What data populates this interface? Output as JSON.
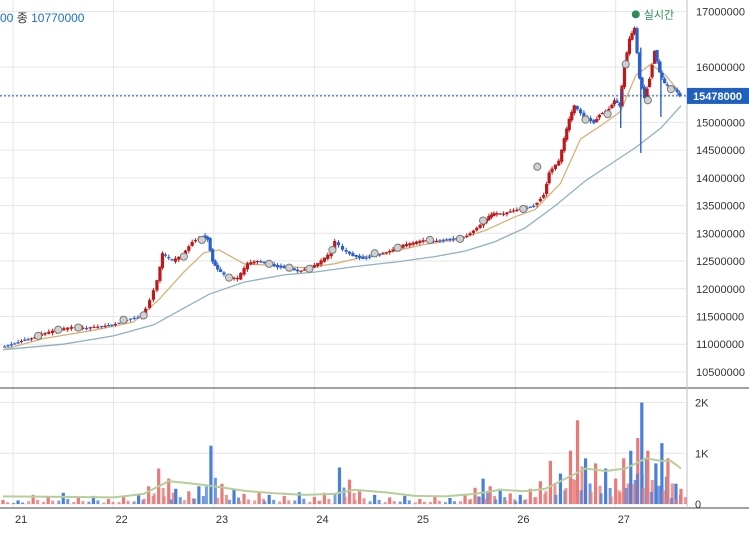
{
  "header": {
    "close_partial": "00",
    "close_label": "종",
    "close_value": "10770000",
    "realtime_label": "실시간"
  },
  "colors": {
    "up_candle": "#c0181a",
    "down_candle": "#2b5fd0",
    "ma_short": "#d4b27a",
    "ma_long": "#8db3bf",
    "vol_up": "#e87a7a",
    "vol_down": "#4a7fd8",
    "vol_ma": "#b6cf9a",
    "grid": "#e6e6e6",
    "axis_text": "#333333",
    "price_tag_bg": "#1f5fbf",
    "realtime_dot": "#2e8b57"
  },
  "chart_data": [
    {
      "type": "candlestick",
      "title": "",
      "x_ticks": [
        "21",
        "22",
        "23",
        "24",
        "25",
        "26",
        "27"
      ],
      "y_ticks": [
        "10500000",
        "11000000",
        "11500000",
        "12000000",
        "12500000",
        "13000000",
        "13500000",
        "14000000",
        "14500000",
        "15000000",
        "15500000",
        "16000000",
        "17000000"
      ],
      "ylim": [
        10300000,
        17100000
      ],
      "current_price": 15478000,
      "current_price_label": "15478000",
      "grid": true,
      "close_series": [
        [
          20.9,
          10950000
        ],
        [
          21.0,
          11000000
        ],
        [
          21.1,
          11070000
        ],
        [
          21.2,
          11110000
        ],
        [
          21.3,
          11180000
        ],
        [
          21.45,
          11250000
        ],
        [
          21.6,
          11300000
        ],
        [
          21.75,
          11290000
        ],
        [
          21.9,
          11330000
        ],
        [
          22.0,
          11350000
        ],
        [
          22.15,
          11450000
        ],
        [
          22.3,
          11500000
        ],
        [
          22.38,
          11800000
        ],
        [
          22.45,
          12150000
        ],
        [
          22.5,
          12630000
        ],
        [
          22.6,
          12500000
        ],
        [
          22.7,
          12600000
        ],
        [
          22.8,
          12850000
        ],
        [
          22.9,
          12950000
        ],
        [
          22.95,
          12900000
        ],
        [
          23.0,
          12500000
        ],
        [
          23.05,
          12350000
        ],
        [
          23.15,
          12200000
        ],
        [
          23.25,
          12180000
        ],
        [
          23.35,
          12450000
        ],
        [
          23.45,
          12500000
        ],
        [
          23.55,
          12450000
        ],
        [
          23.65,
          12400000
        ],
        [
          23.75,
          12380000
        ],
        [
          23.85,
          12320000
        ],
        [
          23.95,
          12360000
        ],
        [
          24.05,
          12450000
        ],
        [
          24.15,
          12600000
        ],
        [
          24.22,
          12850000
        ],
        [
          24.3,
          12700000
        ],
        [
          24.4,
          12600000
        ],
        [
          24.5,
          12550000
        ],
        [
          24.6,
          12600000
        ],
        [
          24.7,
          12640000
        ],
        [
          24.8,
          12700000
        ],
        [
          24.9,
          12780000
        ],
        [
          25.0,
          12820000
        ],
        [
          25.1,
          12870000
        ],
        [
          25.2,
          12860000
        ],
        [
          25.3,
          12880000
        ],
        [
          25.4,
          12900000
        ],
        [
          25.5,
          12920000
        ],
        [
          25.6,
          13050000
        ],
        [
          25.7,
          13200000
        ],
        [
          25.75,
          13300000
        ],
        [
          25.8,
          13350000
        ],
        [
          25.9,
          13350000
        ],
        [
          26.0,
          13420000
        ],
        [
          26.1,
          13450000
        ],
        [
          26.2,
          13500000
        ],
        [
          26.3,
          13700000
        ],
        [
          26.35,
          14100000
        ],
        [
          26.45,
          14300000
        ],
        [
          26.5,
          14700000
        ],
        [
          26.55,
          15050000
        ],
        [
          26.6,
          15300000
        ],
        [
          26.7,
          15100000
        ],
        [
          26.8,
          15000000
        ],
        [
          26.85,
          15150000
        ],
        [
          26.95,
          15250000
        ],
        [
          27.0,
          15400000
        ],
        [
          27.05,
          15300000
        ],
        [
          27.1,
          16000000
        ],
        [
          27.15,
          16500000
        ],
        [
          27.2,
          16700000
        ],
        [
          27.25,
          15800000
        ],
        [
          27.3,
          15450000
        ],
        [
          27.35,
          15800000
        ],
        [
          27.4,
          16300000
        ],
        [
          27.45,
          15900000
        ],
        [
          27.5,
          15700000
        ],
        [
          27.55,
          15650000
        ],
        [
          27.6,
          15600000
        ],
        [
          27.65,
          15478000
        ]
      ],
      "ma_short": [
        [
          20.9,
          10900000
        ],
        [
          21.3,
          11100000
        ],
        [
          21.8,
          11250000
        ],
        [
          22.2,
          11400000
        ],
        [
          22.45,
          11800000
        ],
        [
          22.7,
          12300000
        ],
        [
          22.9,
          12650000
        ],
        [
          23.05,
          12700000
        ],
        [
          23.3,
          12450000
        ],
        [
          23.6,
          12420000
        ],
        [
          23.9,
          12380000
        ],
        [
          24.2,
          12450000
        ],
        [
          24.5,
          12580000
        ],
        [
          24.8,
          12680000
        ],
        [
          25.1,
          12800000
        ],
        [
          25.4,
          12880000
        ],
        [
          25.7,
          13050000
        ],
        [
          26.0,
          13300000
        ],
        [
          26.2,
          13430000
        ],
        [
          26.45,
          13900000
        ],
        [
          26.65,
          14700000
        ],
        [
          26.9,
          15000000
        ],
        [
          27.05,
          15200000
        ],
        [
          27.2,
          15850000
        ],
        [
          27.35,
          16050000
        ],
        [
          27.5,
          15850000
        ],
        [
          27.65,
          15500000
        ]
      ],
      "ma_long": [
        [
          20.9,
          10900000
        ],
        [
          21.5,
          11000000
        ],
        [
          22.0,
          11150000
        ],
        [
          22.4,
          11350000
        ],
        [
          22.7,
          11650000
        ],
        [
          22.95,
          11900000
        ],
        [
          23.3,
          12120000
        ],
        [
          23.7,
          12250000
        ],
        [
          24.0,
          12300000
        ],
        [
          24.4,
          12400000
        ],
        [
          24.8,
          12480000
        ],
        [
          25.2,
          12580000
        ],
        [
          25.5,
          12680000
        ],
        [
          25.8,
          12850000
        ],
        [
          26.1,
          13100000
        ],
        [
          26.4,
          13500000
        ],
        [
          26.7,
          13950000
        ],
        [
          26.95,
          14250000
        ],
        [
          27.2,
          14550000
        ],
        [
          27.45,
          14900000
        ],
        [
          27.65,
          15300000
        ]
      ],
      "markers": [
        [
          21.25,
          11150000
        ],
        [
          21.45,
          11260000
        ],
        [
          21.65,
          11300000
        ],
        [
          22.1,
          11440000
        ],
        [
          22.3,
          11520000
        ],
        [
          22.7,
          12580000
        ],
        [
          22.88,
          12880000
        ],
        [
          23.15,
          12200000
        ],
        [
          23.55,
          12450000
        ],
        [
          23.75,
          12380000
        ],
        [
          23.95,
          12360000
        ],
        [
          24.18,
          12700000
        ],
        [
          24.6,
          12640000
        ],
        [
          24.83,
          12740000
        ],
        [
          25.15,
          12880000
        ],
        [
          25.45,
          12900000
        ],
        [
          25.68,
          13230000
        ],
        [
          26.08,
          13440000
        ],
        [
          26.22,
          14200000
        ],
        [
          26.7,
          15050000
        ],
        [
          26.92,
          15150000
        ],
        [
          27.1,
          16050000
        ],
        [
          27.32,
          15400000
        ],
        [
          27.55,
          15600000
        ]
      ]
    },
    {
      "type": "bar",
      "title": "",
      "y_ticks": [
        "0",
        "1K",
        "2K"
      ],
      "ylim": [
        0,
        2050
      ],
      "volume_series": [
        [
          20.9,
          80,
          "up"
        ],
        [
          21.05,
          70,
          "down"
        ],
        [
          21.2,
          180,
          "up"
        ],
        [
          21.35,
          150,
          "up"
        ],
        [
          21.5,
          220,
          "down"
        ],
        [
          21.65,
          130,
          "up"
        ],
        [
          21.8,
          160,
          "down"
        ],
        [
          21.95,
          100,
          "up"
        ],
        [
          22.1,
          140,
          "up"
        ],
        [
          22.25,
          170,
          "down"
        ],
        [
          22.35,
          350,
          "up"
        ],
        [
          22.45,
          700,
          "up"
        ],
        [
          22.55,
          500,
          "up"
        ],
        [
          22.62,
          300,
          "down"
        ],
        [
          22.75,
          250,
          "up"
        ],
        [
          22.85,
          350,
          "down"
        ],
        [
          22.97,
          1150,
          "down"
        ],
        [
          23.08,
          400,
          "up"
        ],
        [
          23.2,
          280,
          "down"
        ],
        [
          23.3,
          200,
          "up"
        ],
        [
          23.45,
          230,
          "up"
        ],
        [
          23.55,
          180,
          "down"
        ],
        [
          23.7,
          160,
          "up"
        ],
        [
          23.85,
          230,
          "down"
        ],
        [
          24.0,
          140,
          "up"
        ],
        [
          24.1,
          220,
          "up"
        ],
        [
          24.25,
          720,
          "down"
        ],
        [
          24.35,
          480,
          "up"
        ],
        [
          24.45,
          250,
          "up"
        ],
        [
          24.6,
          180,
          "down"
        ],
        [
          24.75,
          130,
          "up"
        ],
        [
          24.9,
          160,
          "down"
        ],
        [
          25.05,
          100,
          "up"
        ],
        [
          25.2,
          140,
          "up"
        ],
        [
          25.35,
          120,
          "down"
        ],
        [
          25.5,
          180,
          "up"
        ],
        [
          25.6,
          320,
          "up"
        ],
        [
          25.68,
          500,
          "down"
        ],
        [
          25.75,
          350,
          "up"
        ],
        [
          25.85,
          300,
          "down"
        ],
        [
          25.95,
          210,
          "up"
        ],
        [
          26.05,
          180,
          "down"
        ],
        [
          26.15,
          300,
          "up"
        ],
        [
          26.25,
          450,
          "up"
        ],
        [
          26.35,
          850,
          "up"
        ],
        [
          26.45,
          600,
          "down"
        ],
        [
          26.55,
          1050,
          "up"
        ],
        [
          26.62,
          1650,
          "up"
        ],
        [
          26.7,
          900,
          "down"
        ],
        [
          26.8,
          800,
          "up"
        ],
        [
          26.9,
          700,
          "down"
        ],
        [
          27.0,
          500,
          "up"
        ],
        [
          27.08,
          900,
          "up"
        ],
        [
          27.15,
          1050,
          "down"
        ],
        [
          27.22,
          1300,
          "up"
        ],
        [
          27.26,
          2000,
          "down"
        ],
        [
          27.32,
          1050,
          "up"
        ],
        [
          27.4,
          800,
          "down"
        ],
        [
          27.46,
          1200,
          "down"
        ],
        [
          27.52,
          900,
          "up"
        ],
        [
          27.6,
          400,
          "down"
        ],
        [
          27.65,
          300,
          "up"
        ]
      ],
      "volume_ma": [
        [
          20.9,
          150
        ],
        [
          21.5,
          140
        ],
        [
          22.0,
          130
        ],
        [
          22.3,
          200
        ],
        [
          22.55,
          450
        ],
        [
          22.8,
          400
        ],
        [
          23.0,
          350
        ],
        [
          23.3,
          260
        ],
        [
          23.6,
          210
        ],
        [
          23.9,
          180
        ],
        [
          24.2,
          200
        ],
        [
          24.4,
          280
        ],
        [
          24.7,
          230
        ],
        [
          25.0,
          160
        ],
        [
          25.3,
          150
        ],
        [
          25.6,
          200
        ],
        [
          25.85,
          280
        ],
        [
          26.1,
          250
        ],
        [
          26.3,
          300
        ],
        [
          26.5,
          500
        ],
        [
          26.7,
          700
        ],
        [
          26.9,
          650
        ],
        [
          27.1,
          700
        ],
        [
          27.3,
          900
        ],
        [
          27.45,
          850
        ],
        [
          27.55,
          850
        ],
        [
          27.65,
          700
        ]
      ]
    }
  ]
}
